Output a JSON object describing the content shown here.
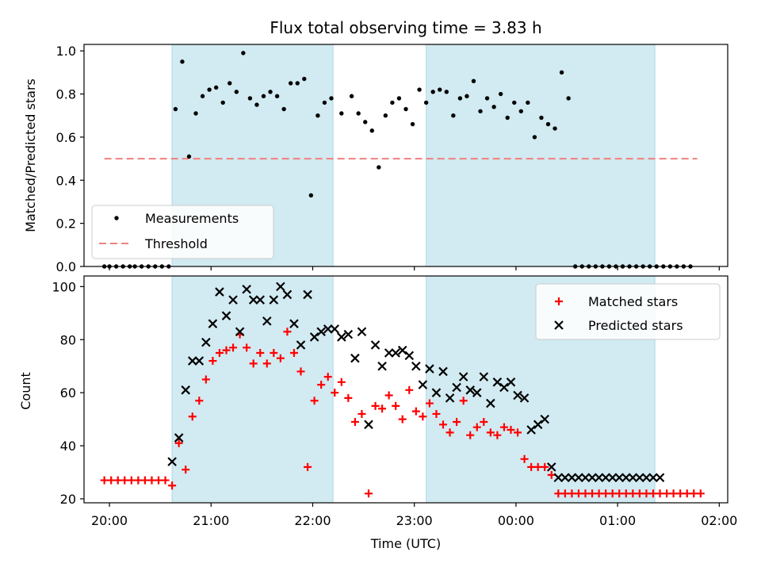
{
  "chart_data": [
    {
      "type": "scatter",
      "title": "Flux total observing time = 3.83 h",
      "xlabel": "",
      "ylabel": "Matched/Predicted stars",
      "xlim": [
        "19:45",
        "02:05"
      ],
      "ylim": [
        0,
        1.03
      ],
      "y_ticks": [
        "0.0",
        "0.2",
        "0.4",
        "0.6",
        "0.8",
        "1.0"
      ],
      "x_ticks": [
        "20:00",
        "21:00",
        "22:00",
        "23:00",
        "00:00",
        "01:00",
        "02:00"
      ],
      "shaded_intervals": [
        [
          "20:37",
          "22:12"
        ],
        [
          "23:07",
          "01:22"
        ]
      ],
      "shade_color": "#add8e6",
      "legend": {
        "placement": "lower-left",
        "entries": [
          "Measurements",
          "Threshold"
        ]
      },
      "threshold": {
        "name": "Threshold",
        "value": 0.5,
        "x_range": [
          "19:57",
          "01:47"
        ],
        "color": "#f08080"
      },
      "series": [
        {
          "name": "Measurements",
          "color": "#000000",
          "x": [
            "19:57",
            "20:00",
            "20:04",
            "20:08",
            "20:12",
            "20:15",
            "20:19",
            "20:23",
            "20:27",
            "20:31",
            "20:35",
            "20:39",
            "20:43",
            "20:47",
            "20:51",
            "20:55",
            "20:59",
            "21:03",
            "21:07",
            "21:11",
            "21:15",
            "21:19",
            "21:23",
            "21:27",
            "21:31",
            "21:35",
            "21:39",
            "21:43",
            "21:47",
            "21:51",
            "21:55",
            "21:59",
            "22:03",
            "22:07",
            "22:11",
            "22:17",
            "22:23",
            "22:27",
            "22:31",
            "22:35",
            "22:39",
            "22:43",
            "22:47",
            "22:51",
            "22:55",
            "22:59",
            "23:03",
            "23:07",
            "23:11",
            "23:15",
            "23:19",
            "23:23",
            "23:27",
            "23:31",
            "23:35",
            "23:39",
            "23:43",
            "23:47",
            "23:51",
            "23:55",
            "23:59",
            "00:03",
            "00:07",
            "00:11",
            "00:15",
            "00:19",
            "00:23",
            "00:27",
            "00:31",
            "00:35",
            "00:39",
            "00:43",
            "00:47",
            "00:51",
            "00:55",
            "00:59",
            "01:03",
            "01:07",
            "01:11",
            "01:15",
            "01:19",
            "01:23",
            "01:27",
            "01:31",
            "01:35",
            "01:39",
            "01:43"
          ],
          "y": [
            0,
            0,
            0,
            0,
            0,
            0,
            0,
            0,
            0,
            0,
            0,
            0.73,
            0.95,
            0.51,
            0.71,
            0.79,
            0.82,
            0.83,
            0.76,
            0.85,
            0.81,
            0.99,
            0.78,
            0.75,
            0.79,
            0.81,
            0.79,
            0.73,
            0.85,
            0.85,
            0.87,
            0.33,
            0.7,
            0.76,
            0.78,
            0.71,
            0.79,
            0.71,
            0.67,
            0.63,
            0.46,
            0.7,
            0.76,
            0.78,
            0.73,
            0.66,
            0.82,
            0.76,
            0.81,
            0.82,
            0.81,
            0.7,
            0.78,
            0.79,
            0.86,
            0.72,
            0.78,
            0.74,
            0.8,
            0.69,
            0.76,
            0.72,
            0.76,
            0.6,
            0.69,
            0.66,
            0.64,
            0.9,
            0.78,
            0,
            0,
            0,
            0,
            0,
            0,
            0,
            0,
            0,
            0,
            0,
            0,
            0,
            0,
            0,
            0,
            0,
            0
          ]
        }
      ]
    },
    {
      "type": "scatter",
      "title": "",
      "xlabel": "Time (UTC)",
      "ylabel": "Count",
      "xlim": [
        "19:45",
        "02:05"
      ],
      "ylim": [
        18.5,
        104
      ],
      "y_ticks": [
        "20",
        "40",
        "60",
        "80",
        "100"
      ],
      "x_ticks": [
        "20:00",
        "21:00",
        "22:00",
        "23:00",
        "00:00",
        "01:00",
        "02:00"
      ],
      "shaded_intervals": [
        [
          "20:37",
          "22:12"
        ],
        [
          "23:07",
          "01:22"
        ]
      ],
      "shade_color": "#add8e6",
      "legend": {
        "placement": "upper-right",
        "entries": [
          "Matched stars",
          "Predicted stars"
        ]
      },
      "series": [
        {
          "name": "Matched stars",
          "marker": "plus",
          "color": "#ff0000",
          "x": [
            "19:57",
            "20:01",
            "20:05",
            "20:09",
            "20:13",
            "20:17",
            "20:21",
            "20:25",
            "20:29",
            "20:33",
            "20:37",
            "20:41",
            "20:45",
            "20:49",
            "20:53",
            "20:57",
            "21:01",
            "21:05",
            "21:09",
            "21:13",
            "21:17",
            "21:21",
            "21:25",
            "21:29",
            "21:33",
            "21:37",
            "21:41",
            "21:45",
            "21:49",
            "21:53",
            "21:57",
            "22:01",
            "22:05",
            "22:09",
            "22:13",
            "22:17",
            "22:21",
            "22:25",
            "22:29",
            "22:33",
            "22:37",
            "22:41",
            "22:45",
            "22:49",
            "22:53",
            "22:57",
            "23:01",
            "23:05",
            "23:09",
            "23:13",
            "23:17",
            "23:21",
            "23:25",
            "23:29",
            "23:33",
            "23:37",
            "23:41",
            "23:45",
            "23:49",
            "23:53",
            "23:57",
            "00:01",
            "00:05",
            "00:09",
            "00:13",
            "00:17",
            "00:21",
            "00:25",
            "00:29",
            "00:33",
            "00:37",
            "00:41",
            "00:45",
            "00:49",
            "00:53",
            "00:57",
            "01:01",
            "01:05",
            "01:09",
            "01:13",
            "01:17",
            "01:21",
            "01:25",
            "01:29",
            "01:33",
            "01:37",
            "01:41",
            "01:45",
            "01:49"
          ],
          "y": [
            27,
            27,
            27,
            27,
            27,
            27,
            27,
            27,
            27,
            27,
            25,
            41,
            31,
            51,
            57,
            65,
            72,
            75,
            76,
            77,
            82,
            77,
            71,
            75,
            71,
            75,
            73,
            83,
            75,
            68,
            32,
            57,
            63,
            66,
            60,
            64,
            58,
            49,
            52,
            22,
            55,
            54,
            59,
            55,
            50,
            61,
            53,
            51,
            56,
            52,
            48,
            45,
            49,
            57,
            44,
            47,
            49,
            45,
            44,
            47,
            46,
            45,
            35,
            32,
            32,
            32,
            29,
            22,
            22,
            22,
            22,
            22,
            22,
            22,
            22,
            22,
            22,
            22,
            22,
            22,
            22,
            22,
            22,
            22,
            22,
            22,
            22,
            22,
            22
          ]
        },
        {
          "name": "Predicted stars",
          "marker": "x",
          "color": "#000000",
          "x": [
            "20:37",
            "20:41",
            "20:45",
            "20:49",
            "20:53",
            "20:57",
            "21:01",
            "21:05",
            "21:09",
            "21:13",
            "21:17",
            "21:21",
            "21:25",
            "21:29",
            "21:33",
            "21:37",
            "21:41",
            "21:45",
            "21:49",
            "21:53",
            "21:57",
            "22:01",
            "22:05",
            "22:09",
            "22:13",
            "22:17",
            "22:21",
            "22:25",
            "22:29",
            "22:33",
            "22:37",
            "22:41",
            "22:45",
            "22:49",
            "22:53",
            "22:57",
            "23:01",
            "23:05",
            "23:09",
            "23:13",
            "23:17",
            "23:21",
            "23:25",
            "23:29",
            "23:33",
            "23:37",
            "23:41",
            "23:45",
            "23:49",
            "23:53",
            "23:57",
            "00:01",
            "00:05",
            "00:09",
            "00:13",
            "00:17",
            "00:21",
            "00:25",
            "00:29",
            "00:33",
            "00:37",
            "00:41",
            "00:45",
            "00:49",
            "00:53",
            "00:57",
            "01:01",
            "01:05",
            "01:09",
            "01:13",
            "01:17",
            "01:21",
            "01:25"
          ],
          "y": [
            34,
            43,
            61,
            72,
            72,
            79,
            86,
            98,
            89,
            95,
            83,
            99,
            95,
            95,
            87,
            95,
            100,
            97,
            86,
            78,
            97,
            81,
            83,
            84,
            84,
            81,
            82,
            73,
            83,
            48,
            78,
            70,
            75,
            75,
            76,
            74,
            70,
            63,
            69,
            60,
            68,
            58,
            62,
            66,
            61,
            60,
            66,
            56,
            64,
            62,
            64,
            59,
            58,
            46,
            48,
            50,
            32,
            28,
            28,
            28,
            28,
            28,
            28,
            28,
            28,
            28,
            28,
            28,
            28,
            28,
            28,
            28,
            28
          ]
        }
      ]
    }
  ]
}
